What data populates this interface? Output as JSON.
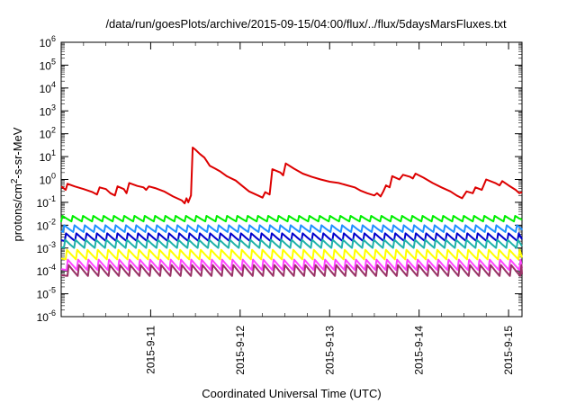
{
  "chart_data": {
    "type": "line",
    "title": "/data/run/goesPlots/archive/2015-09-15/04:00/flux/../flux/5daysMarsFluxes.txt",
    "xlabel": "Coordinated Universal Time (UTC)",
    "ylabel": "protons/cm²-s-sr-MeV",
    "y_scale": "log",
    "ylim": [
      1e-06,
      1000000.0
    ],
    "xlim": [
      0.0,
      5.15
    ],
    "x_axis_dates": [
      "2015-9-11",
      "2015-9-12",
      "2015-9-13",
      "2015-9-14",
      "2015-9-15"
    ],
    "x_tick_values": [
      1,
      2,
      3,
      4,
      5
    ],
    "y_tick_labels": [
      {
        "base": "10",
        "exp": "-6",
        "value": 1e-06
      },
      {
        "base": "10",
        "exp": "-5",
        "value": 1e-05
      },
      {
        "base": "10",
        "exp": "-4",
        "value": 0.0001
      },
      {
        "base": "10",
        "exp": "-3",
        "value": 0.001
      },
      {
        "base": "10",
        "exp": "-2",
        "value": 0.01
      },
      {
        "base": "10",
        "exp": "-1",
        "value": 0.1
      },
      {
        "base": "10",
        "exp": "0",
        "value": 1
      },
      {
        "base": "10",
        "exp": "1",
        "value": 10
      },
      {
        "base": "10",
        "exp": "2",
        "value": 100
      },
      {
        "base": "10",
        "exp": "3",
        "value": 1000
      },
      {
        "base": "10",
        "exp": "4",
        "value": 10000
      },
      {
        "base": "10",
        "exp": "5",
        "value": 100000
      },
      {
        "base": "10",
        "exp": "6",
        "value": 1000000
      }
    ],
    "grid": false,
    "legend": "none",
    "series": [
      {
        "color": "#dd0000",
        "points": [
          [
            0.0,
            0.5
          ],
          [
            0.05,
            0.35
          ],
          [
            0.07,
            0.65
          ],
          [
            0.15,
            0.5
          ],
          [
            0.25,
            0.38
          ],
          [
            0.35,
            0.28
          ],
          [
            0.4,
            0.22
          ],
          [
            0.43,
            0.45
          ],
          [
            0.5,
            0.38
          ],
          [
            0.55,
            0.25
          ],
          [
            0.6,
            0.2
          ],
          [
            0.63,
            0.5
          ],
          [
            0.7,
            0.38
          ],
          [
            0.73,
            0.25
          ],
          [
            0.76,
            0.7
          ],
          [
            0.85,
            0.52
          ],
          [
            0.92,
            0.45
          ],
          [
            0.95,
            0.35
          ],
          [
            0.98,
            0.5
          ],
          [
            1.05,
            0.42
          ],
          [
            1.15,
            0.3
          ],
          [
            1.25,
            0.18
          ],
          [
            1.35,
            0.12
          ],
          [
            1.38,
            0.09
          ],
          [
            1.4,
            0.15
          ],
          [
            1.42,
            0.1
          ],
          [
            1.45,
            0.2
          ],
          [
            1.47,
            25
          ],
          [
            1.5,
            20
          ],
          [
            1.55,
            13
          ],
          [
            1.6,
            9
          ],
          [
            1.63,
            6
          ],
          [
            1.66,
            4
          ],
          [
            1.72,
            3
          ],
          [
            1.78,
            2.2
          ],
          [
            1.85,
            1.4
          ],
          [
            1.95,
            0.9
          ],
          [
            2.03,
            0.5
          ],
          [
            2.1,
            0.3
          ],
          [
            2.2,
            0.2
          ],
          [
            2.25,
            0.16
          ],
          [
            2.28,
            0.28
          ],
          [
            2.33,
            0.22
          ],
          [
            2.36,
            2.8
          ],
          [
            2.45,
            2
          ],
          [
            2.48,
            1.5
          ],
          [
            2.51,
            5
          ],
          [
            2.6,
            3
          ],
          [
            2.7,
            1.8
          ],
          [
            2.8,
            1.3
          ],
          [
            2.9,
            1.0
          ],
          [
            3.0,
            0.8
          ],
          [
            3.1,
            0.7
          ],
          [
            3.2,
            0.55
          ],
          [
            3.28,
            0.45
          ],
          [
            3.35,
            0.32
          ],
          [
            3.42,
            0.25
          ],
          [
            3.5,
            0.2
          ],
          [
            3.53,
            0.25
          ],
          [
            3.57,
            0.18
          ],
          [
            3.6,
            0.3
          ],
          [
            3.63,
            0.55
          ],
          [
            3.67,
            0.45
          ],
          [
            3.7,
            1.4
          ],
          [
            3.78,
            1.0
          ],
          [
            3.82,
            1.6
          ],
          [
            3.9,
            1.3
          ],
          [
            3.93,
            1.1
          ],
          [
            3.96,
            1.8
          ],
          [
            4.05,
            1.2
          ],
          [
            4.15,
            0.7
          ],
          [
            4.25,
            0.45
          ],
          [
            4.35,
            0.3
          ],
          [
            4.42,
            0.2
          ],
          [
            4.48,
            0.15
          ],
          [
            4.53,
            0.3
          ],
          [
            4.6,
            0.25
          ],
          [
            4.63,
            0.45
          ],
          [
            4.7,
            0.35
          ],
          [
            4.75,
            1.0
          ],
          [
            4.85,
            0.7
          ],
          [
            4.9,
            0.55
          ],
          [
            4.93,
            0.85
          ],
          [
            5.0,
            0.55
          ],
          [
            5.08,
            0.35
          ],
          [
            5.12,
            0.25
          ],
          [
            5.15,
            0.28
          ]
        ]
      },
      {
        "color": "#00ee00",
        "base": 0.016,
        "amp": 1.6,
        "period": 0.115,
        "phase": 0.0
      },
      {
        "color": "#1e90ff",
        "base": 0.0055,
        "amp": 1.8,
        "period": 0.115,
        "phase": 0.02
      },
      {
        "color": "#0000cc",
        "base": 0.0022,
        "amp": 2.0,
        "period": 0.115,
        "phase": 0.04
      },
      {
        "color": "#20b2aa",
        "base": 0.0011,
        "amp": 2.1,
        "period": 0.115,
        "phase": 0.03
      },
      {
        "color": "#ffff00",
        "base": 0.00035,
        "amp": 2.4,
        "period": 0.115,
        "phase": 0.05
      },
      {
        "color": "#ff44ff",
        "base": 0.00012,
        "amp": 2.6,
        "period": 0.115,
        "phase": 0.06
      },
      {
        "color": "#993366",
        "base": 6.5e-05,
        "amp": 2.8,
        "period": 0.115,
        "phase": 0.07
      }
    ]
  }
}
